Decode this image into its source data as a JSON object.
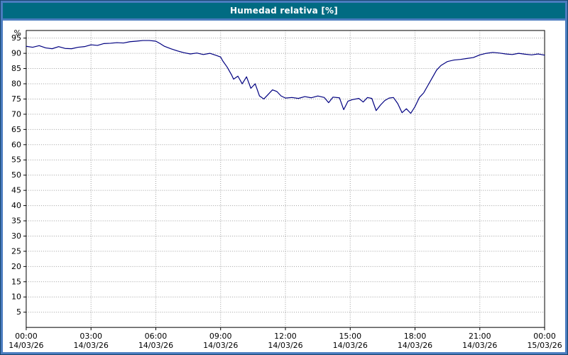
{
  "window": {
    "title": "Humedad relativa [%]"
  },
  "colors": {
    "frame_blue": "#4a7cbf",
    "titlebar_teal": "#006b82",
    "plot_background": "#ffffff",
    "grid_gray": "#9e9e9e",
    "axis_black": "#000000",
    "line_navy": "#000080"
  },
  "chart_data": {
    "type": "line",
    "title": "Humedad relativa [%]",
    "ylabel": "%",
    "xlabel": "",
    "ylim": [
      0,
      97.5
    ],
    "xlim_hours": [
      0,
      24
    ],
    "grid": true,
    "legend": "none",
    "y_ticks": [
      5,
      10,
      15,
      20,
      25,
      30,
      35,
      40,
      45,
      50,
      55,
      60,
      65,
      70,
      75,
      80,
      85,
      90,
      95
    ],
    "x_ticks": [
      {
        "hour": 0,
        "time": "00:00",
        "date": "14/03/26"
      },
      {
        "hour": 3,
        "time": "03:00",
        "date": "14/03/26"
      },
      {
        "hour": 6,
        "time": "06:00",
        "date": "14/03/26"
      },
      {
        "hour": 9,
        "time": "09:00",
        "date": "14/03/26"
      },
      {
        "hour": 12,
        "time": "12:00",
        "date": "14/03/26"
      },
      {
        "hour": 15,
        "time": "15:00",
        "date": "14/03/26"
      },
      {
        "hour": 18,
        "time": "18:00",
        "date": "14/03/26"
      },
      {
        "hour": 21,
        "time": "21:00",
        "date": "14/03/26"
      },
      {
        "hour": 24,
        "time": "00:00",
        "date": "15/03/26"
      }
    ],
    "series": [
      {
        "name": "Humedad relativa",
        "x_hours": [
          0,
          0.3,
          0.6,
          0.9,
          1.2,
          1.5,
          1.8,
          2.1,
          2.4,
          2.7,
          3.0,
          3.3,
          3.6,
          3.9,
          4.2,
          4.5,
          4.8,
          5.1,
          5.4,
          5.7,
          6.0,
          6.2,
          6.4,
          6.7,
          7.0,
          7.3,
          7.6,
          7.9,
          8.2,
          8.5,
          8.8,
          9.0,
          9.1,
          9.3,
          9.5,
          9.6,
          9.8,
          10.0,
          10.2,
          10.4,
          10.6,
          10.8,
          11.0,
          11.2,
          11.4,
          11.6,
          11.8,
          12.0,
          12.3,
          12.6,
          12.9,
          13.2,
          13.5,
          13.8,
          14.0,
          14.2,
          14.5,
          14.7,
          14.9,
          15.1,
          15.4,
          15.6,
          15.8,
          16.0,
          16.2,
          16.4,
          16.6,
          16.8,
          17.0,
          17.2,
          17.4,
          17.6,
          17.8,
          18.0,
          18.2,
          18.4,
          18.6,
          18.8,
          19.0,
          19.2,
          19.5,
          19.8,
          20.1,
          20.4,
          20.7,
          21.0,
          21.3,
          21.6,
          21.9,
          22.2,
          22.5,
          22.8,
          23.1,
          23.4,
          23.7,
          24.0
        ],
        "values": [
          92.3,
          92.0,
          92.5,
          91.8,
          91.5,
          92.2,
          91.6,
          91.5,
          92.0,
          92.2,
          92.8,
          92.6,
          93.2,
          93.3,
          93.5,
          93.4,
          93.8,
          94.0,
          94.2,
          94.2,
          94.0,
          93.2,
          92.3,
          91.5,
          90.8,
          90.2,
          89.8,
          90.1,
          89.6,
          90.0,
          89.3,
          88.8,
          87.5,
          85.5,
          83.0,
          81.5,
          82.5,
          80.0,
          82.3,
          78.5,
          80.0,
          76.0,
          75.0,
          76.5,
          78.0,
          77.5,
          76.0,
          75.3,
          75.5,
          75.2,
          75.8,
          75.4,
          76.0,
          75.5,
          73.8,
          75.6,
          75.4,
          71.5,
          74.3,
          74.8,
          75.2,
          74.0,
          75.5,
          75.2,
          71.2,
          73.0,
          74.5,
          75.3,
          75.5,
          73.5,
          70.5,
          71.8,
          70.3,
          72.5,
          75.5,
          77.0,
          79.5,
          82.0,
          84.5,
          86.0,
          87.3,
          87.8,
          88.0,
          88.3,
          88.6,
          89.5,
          90.0,
          90.3,
          90.1,
          89.8,
          89.6,
          90.0,
          89.7,
          89.5,
          89.8,
          89.4
        ]
      }
    ]
  }
}
